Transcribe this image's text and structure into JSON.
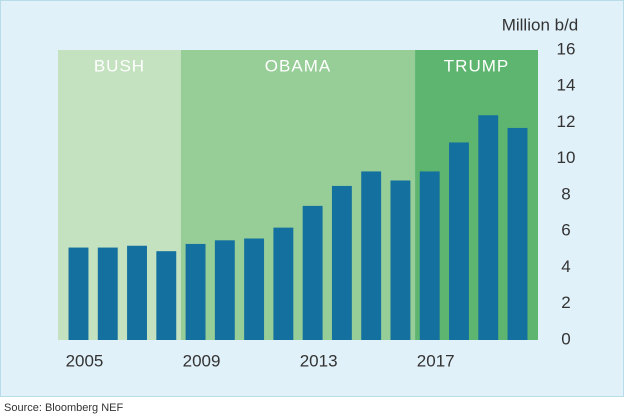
{
  "chart_data": {
    "type": "bar",
    "y_axis_label": "Million b/d",
    "source": "Source: Bloomberg NEF",
    "x": [
      2005,
      2006,
      2007,
      2008,
      2009,
      2010,
      2011,
      2012,
      2013,
      2014,
      2015,
      2016,
      2017,
      2018,
      2019,
      2020
    ],
    "values": [
      5.1,
      5.1,
      5.2,
      4.9,
      5.3,
      5.5,
      5.6,
      6.2,
      7.4,
      8.5,
      9.3,
      8.8,
      9.3,
      10.9,
      12.4,
      11.7
    ],
    "color": "#14709e",
    "xlim": [
      2004.3,
      2020.7
    ],
    "xticks": [
      2005,
      2009,
      2013,
      2017
    ],
    "ylim": [
      0,
      16
    ],
    "yticks": [
      0,
      2,
      4,
      6,
      8,
      10,
      12,
      14,
      16
    ],
    "periods": [
      {
        "name": "BUSH",
        "color": "#c4e1c0",
        "end": 2008.5
      },
      {
        "name": "OBAMA",
        "color": "#97cd97",
        "start": 2008.5,
        "end": 2016.5
      },
      {
        "name": "TRUMP",
        "color": "#5db56f",
        "start": 2016.5
      }
    ]
  }
}
